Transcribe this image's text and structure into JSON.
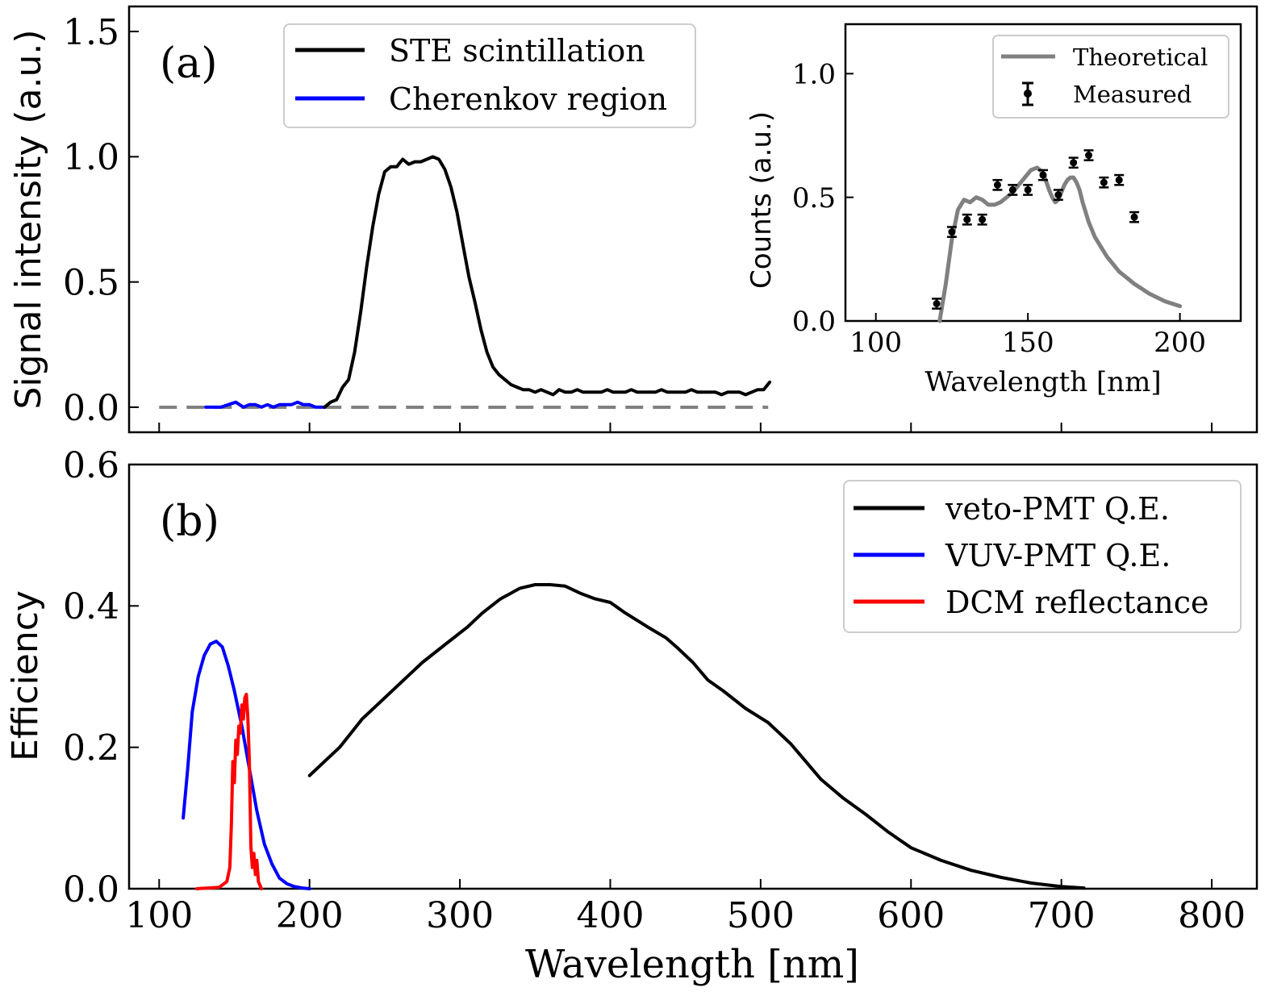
{
  "chart_data": [
    {
      "panel_label": "(a)",
      "type": "line",
      "xlabel": "",
      "ylabel": "Signal intensity (a.u.)",
      "xlim": [
        80,
        830
      ],
      "ylim": [
        -0.1,
        1.6
      ],
      "xticks": [
        100,
        200,
        300,
        400,
        500,
        600,
        700,
        800
      ],
      "yticks": [
        0.0,
        0.5,
        1.0,
        1.5
      ],
      "ytick_labels": [
        "0.0",
        "0.5",
        "1.0",
        "1.5"
      ],
      "legend_position": "top-center",
      "series": [
        {
          "name": "STE scintillation",
          "color": "#000000",
          "x": [
            210,
            214,
            218,
            222,
            226,
            230,
            234,
            238,
            242,
            246,
            250,
            254,
            258,
            262,
            266,
            270,
            274,
            278,
            282,
            286,
            290,
            294,
            298,
            302,
            306,
            310,
            314,
            318,
            322,
            326,
            330,
            334,
            338,
            342,
            346,
            350,
            354,
            358,
            362,
            366,
            370,
            374,
            378,
            382,
            386,
            390,
            394,
            398,
            402,
            406,
            410,
            414,
            418,
            422,
            426,
            430,
            434,
            438,
            442,
            446,
            450,
            454,
            458,
            462,
            466,
            470,
            474,
            478,
            482,
            486,
            490,
            494,
            498,
            502,
            506
          ],
          "y": [
            0.0,
            0.02,
            0.03,
            0.08,
            0.11,
            0.22,
            0.38,
            0.56,
            0.72,
            0.85,
            0.94,
            0.96,
            0.96,
            0.99,
            0.97,
            0.98,
            0.98,
            0.99,
            1.0,
            0.99,
            0.95,
            0.88,
            0.78,
            0.65,
            0.52,
            0.42,
            0.31,
            0.22,
            0.16,
            0.13,
            0.11,
            0.09,
            0.08,
            0.07,
            0.07,
            0.06,
            0.07,
            0.06,
            0.05,
            0.07,
            0.06,
            0.06,
            0.07,
            0.06,
            0.06,
            0.06,
            0.06,
            0.07,
            0.06,
            0.06,
            0.06,
            0.07,
            0.06,
            0.06,
            0.06,
            0.06,
            0.07,
            0.06,
            0.06,
            0.06,
            0.06,
            0.07,
            0.06,
            0.06,
            0.06,
            0.06,
            0.05,
            0.06,
            0.06,
            0.06,
            0.05,
            0.06,
            0.07,
            0.07,
            0.1
          ]
        },
        {
          "name": "Cherenkov region",
          "color": "#0000ff",
          "x": [
            131,
            136,
            141,
            146,
            151,
            156,
            160,
            164,
            168,
            172,
            176,
            180,
            184,
            188,
            192,
            196,
            200,
            204,
            208,
            210
          ],
          "y": [
            0.0,
            0.0,
            0.0,
            0.01,
            0.02,
            0.0,
            0.01,
            0.01,
            0.0,
            0.01,
            0.0,
            0.01,
            0.01,
            0.01,
            0.02,
            0.01,
            0.01,
            0.0,
            0.0,
            0.0
          ]
        }
      ],
      "reference_line": {
        "y": 0.0,
        "x_range": [
          100,
          505
        ],
        "color": "#808080",
        "style": "dashed"
      }
    },
    {
      "panel_label": "inset",
      "type": "line+errorbar",
      "xlabel": "Wavelength [nm]",
      "ylabel": "Counts (a.u.)",
      "xlim": [
        90,
        220
      ],
      "ylim": [
        0.0,
        1.2
      ],
      "xticks": [
        100,
        150,
        200
      ],
      "yticks": [
        0.0,
        0.5,
        1.0
      ],
      "ytick_labels": [
        "0.0",
        "0.5",
        "1.0"
      ],
      "legend_position": "top-right",
      "series": [
        {
          "name": "Theoretical",
          "color": "#808080",
          "x": [
            121,
            123,
            125,
            127,
            129,
            131,
            133,
            135,
            137,
            139,
            141,
            143,
            145,
            147,
            149,
            151,
            153,
            155,
            157,
            158,
            159,
            160,
            161,
            162,
            163,
            164,
            165,
            166,
            167,
            168,
            170,
            172,
            174,
            176,
            178,
            180,
            185,
            190,
            195,
            200
          ],
          "y": [
            0.0,
            0.15,
            0.33,
            0.45,
            0.49,
            0.48,
            0.5,
            0.49,
            0.47,
            0.47,
            0.48,
            0.5,
            0.52,
            0.55,
            0.58,
            0.61,
            0.62,
            0.6,
            0.53,
            0.5,
            0.48,
            0.49,
            0.52,
            0.55,
            0.57,
            0.58,
            0.58,
            0.56,
            0.53,
            0.48,
            0.4,
            0.34,
            0.3,
            0.26,
            0.23,
            0.2,
            0.15,
            0.11,
            0.08,
            0.06
          ]
        },
        {
          "name": "Measured",
          "color": "#000000",
          "x": [
            120,
            125,
            130,
            135,
            140,
            145,
            150,
            155,
            160,
            165,
            170,
            175,
            180,
            185
          ],
          "y": [
            0.07,
            0.36,
            0.41,
            0.41,
            0.55,
            0.53,
            0.53,
            0.59,
            0.51,
            0.64,
            0.67,
            0.56,
            0.57,
            0.42
          ],
          "err": [
            0.02,
            0.02,
            0.02,
            0.02,
            0.02,
            0.02,
            0.02,
            0.02,
            0.02,
            0.02,
            0.02,
            0.02,
            0.02,
            0.02
          ]
        }
      ]
    },
    {
      "panel_label": "(b)",
      "type": "line",
      "xlabel": "Wavelength [nm]",
      "ylabel": "Efficiency",
      "xlim": [
        80,
        830
      ],
      "ylim": [
        0.0,
        0.6
      ],
      "xticks": [
        100,
        200,
        300,
        400,
        500,
        600,
        700,
        800
      ],
      "yticks": [
        0.0,
        0.2,
        0.4,
        0.6
      ],
      "ytick_labels": [
        "0.0",
        "0.2",
        "0.4",
        "0.6"
      ],
      "legend_position": "top-right",
      "series": [
        {
          "name": "veto-PMT Q.E.",
          "color": "#000000",
          "x": [
            200,
            210,
            220,
            235,
            250,
            260,
            275,
            290,
            305,
            315,
            327,
            340,
            350,
            360,
            370,
            380,
            390,
            400,
            410,
            425,
            437,
            445,
            455,
            465,
            475,
            490,
            505,
            520,
            530,
            540,
            555,
            570,
            585,
            600,
            620,
            640,
            660,
            680,
            700,
            715
          ],
          "y": [
            0.16,
            0.18,
            0.2,
            0.24,
            0.27,
            0.29,
            0.32,
            0.345,
            0.37,
            0.39,
            0.41,
            0.425,
            0.43,
            0.43,
            0.428,
            0.418,
            0.41,
            0.405,
            0.39,
            0.37,
            0.355,
            0.34,
            0.32,
            0.295,
            0.28,
            0.255,
            0.235,
            0.205,
            0.18,
            0.155,
            0.128,
            0.105,
            0.08,
            0.058,
            0.04,
            0.026,
            0.016,
            0.008,
            0.003,
            0.001
          ]
        },
        {
          "name": "VUV-PMT Q.E.",
          "color": "#0000ff",
          "x": [
            116,
            119,
            122,
            126,
            130,
            134,
            138,
            142,
            146,
            150,
            155,
            160,
            165,
            170,
            175,
            180,
            185,
            190,
            195,
            200
          ],
          "y": [
            0.1,
            0.17,
            0.25,
            0.3,
            0.33,
            0.346,
            0.35,
            0.342,
            0.315,
            0.28,
            0.23,
            0.17,
            0.11,
            0.063,
            0.035,
            0.015,
            0.007,
            0.003,
            0.001,
            0.0
          ]
        },
        {
          "name": "DCM reflectance",
          "color": "#ff0000",
          "x": [
            125,
            140,
            145,
            147,
            148,
            149,
            150,
            151,
            152,
            153,
            154,
            155,
            156,
            157,
            158,
            159,
            160,
            161,
            162,
            163,
            164,
            165,
            166,
            167,
            168
          ],
          "y": [
            0.0,
            0.002,
            0.01,
            0.03,
            0.09,
            0.18,
            0.15,
            0.21,
            0.19,
            0.23,
            0.22,
            0.26,
            0.24,
            0.27,
            0.275,
            0.24,
            0.18,
            0.06,
            0.03,
            0.05,
            0.02,
            0.04,
            0.01,
            0.005,
            0.0
          ]
        }
      ]
    }
  ]
}
